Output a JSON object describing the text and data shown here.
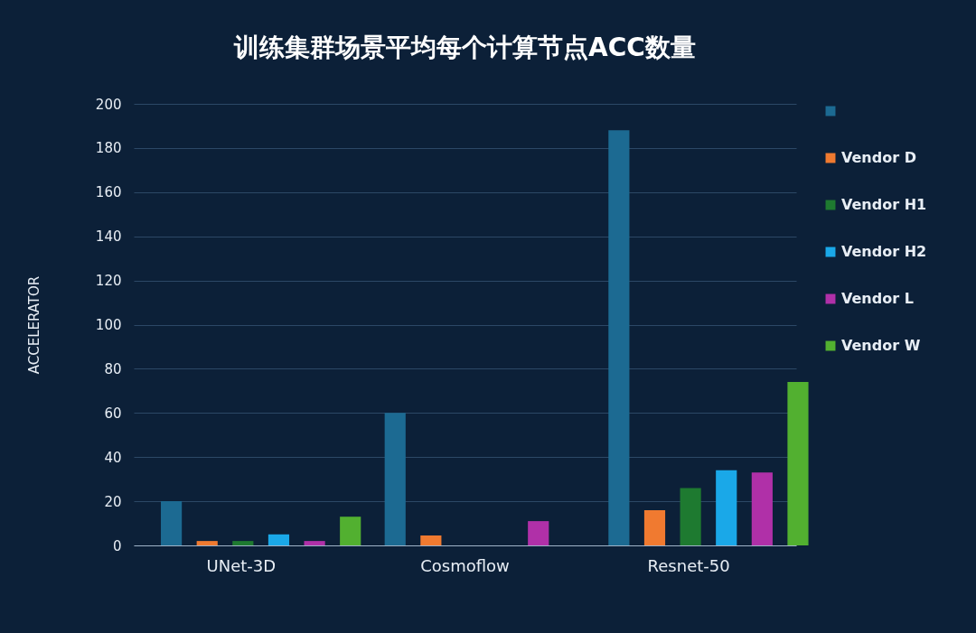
{
  "chart_data": {
    "type": "bar",
    "title": "训练集群场景平均每个计算节点ACC数量",
    "ylabel": "ACCELERATOR",
    "categories": [
      "UNet-3D",
      "Cosmoflow",
      "Resnet-50"
    ],
    "series": [
      {
        "color": "#1c6a92",
        "values": [
          20,
          60,
          188
        ]
      },
      {
        "name": "Vendor D",
        "color": "#f07a30",
        "values": [
          2,
          4.5,
          16
        ]
      },
      {
        "name": "Vendor H1",
        "color": "#1e7a30",
        "values": [
          2,
          null,
          26
        ]
      },
      {
        "name": "Vendor H2",
        "color": "#1aa8e8",
        "values": [
          5,
          null,
          34
        ]
      },
      {
        "name": "Vendor L",
        "color": "#b030a8",
        "values": [
          2,
          11,
          33
        ]
      },
      {
        "name": "Vendor W",
        "color": "#52b030",
        "values": [
          13,
          null,
          74
        ]
      }
    ],
    "ylim": [
      0,
      200
    ],
    "yticks": [
      0,
      20,
      40,
      60,
      80,
      100,
      120,
      140,
      160,
      180,
      200
    ],
    "grid": "y",
    "legend": "top right"
  }
}
